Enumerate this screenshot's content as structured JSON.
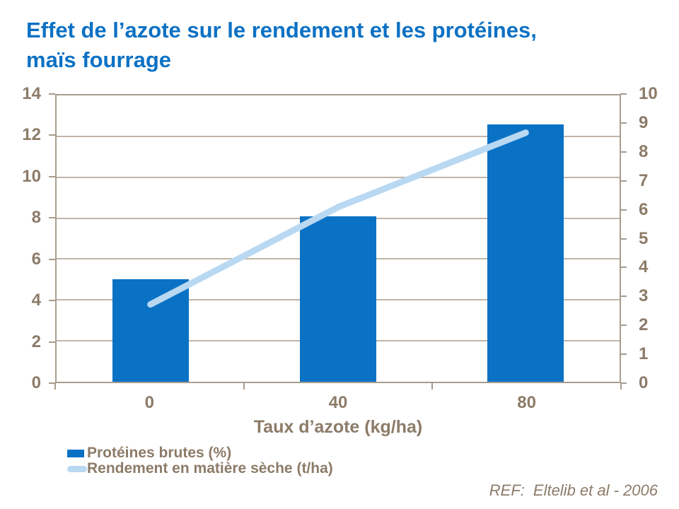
{
  "title": {
    "line1": "Effet de l’azote sur le rendement et les protéines,",
    "line2": "maïs fourrage"
  },
  "footer": {
    "ref_label": "REF:",
    "ref_value": "Eltelib et al - 2006"
  },
  "colors": {
    "title_blue": "#0C71C4",
    "bar_blue": "#0A72C5",
    "line_light_blue": "#B9D8F2",
    "axis_text": "#8C7B68",
    "grid_line": "#BFB5A8",
    "axis_line": "#A89C8E",
    "background": "#FFFFFF"
  },
  "chart_data": {
    "type": "bar",
    "subtype": "combo bar + line with dual y-axes",
    "title": "Effet de l’azote sur le rendement et les protéines, maïs fourrage",
    "categories": [
      "0",
      "40",
      "80"
    ],
    "series": [
      {
        "name": "Protéines brutes (%)",
        "type": "bar",
        "axis": "left",
        "values": [
          5,
          8.1,
          12.6
        ],
        "color": "#0A72C5"
      },
      {
        "name": "Rendement en matière sèche (t/ha)",
        "type": "line",
        "axis": "right",
        "values": [
          2.7,
          6.1,
          8.7
        ],
        "color": "#B9D8F2"
      }
    ],
    "xlabel": "Taux d’azote (kg/ha)",
    "left_axis": {
      "min": 0,
      "max": 14,
      "tick_step": 2,
      "ticks": [
        0,
        2,
        4,
        6,
        8,
        10,
        12,
        14
      ]
    },
    "right_axis": {
      "min": 0,
      "max": 10,
      "tick_step": 1,
      "ticks": [
        0,
        1,
        2,
        3,
        4,
        5,
        6,
        7,
        8,
        9,
        10
      ]
    },
    "grid": "horizontal gridlines at left-axis tick values",
    "legend_position": "bottom-left"
  }
}
